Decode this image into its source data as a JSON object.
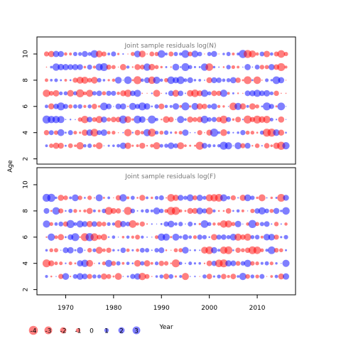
{
  "chart_data": [
    {
      "type": "scatter",
      "subtype": "bubble",
      "title": "Joint sample residuals log(N)",
      "x_range": [
        1964,
        2018
      ],
      "y_range": [
        1.6,
        11.3
      ],
      "y_ticks": [
        2,
        4,
        6,
        8,
        10
      ],
      "ages": [
        3,
        4,
        5,
        6,
        7,
        8,
        9,
        10
      ],
      "years": [
        1966,
        2016
      ],
      "residual_range": [
        -4,
        3
      ],
      "grid": false
    },
    {
      "type": "scatter",
      "subtype": "bubble",
      "title": "Joint sample residuals log(F)",
      "x_range": [
        1964,
        2018
      ],
      "y_range": [
        1.6,
        11.3
      ],
      "y_ticks": [
        2,
        4,
        6,
        8,
        10
      ],
      "ages": [
        3,
        4,
        5,
        6,
        7,
        8,
        9
      ],
      "years": [
        1966,
        2016
      ],
      "residual_range": [
        -4,
        3
      ],
      "grid": false
    }
  ],
  "shared": {
    "xlabel": "Year",
    "ylabel": "Age",
    "x_ticks": [
      1970,
      1980,
      1990,
      2000,
      2010
    ],
    "colors": {
      "positive": "#0000ff",
      "negative": "#ff0000",
      "opacity": 0.5
    }
  },
  "legend": {
    "placement": "bottom-left",
    "items": [
      {
        "label": "-4",
        "value": -4
      },
      {
        "label": "-3",
        "value": -3
      },
      {
        "label": "-2",
        "value": -2
      },
      {
        "label": "-1",
        "value": -1
      },
      {
        "label": "0",
        "value": 0
      },
      {
        "label": "1",
        "value": 1
      },
      {
        "label": "2",
        "value": 2
      },
      {
        "label": "3",
        "value": 3
      }
    ]
  }
}
